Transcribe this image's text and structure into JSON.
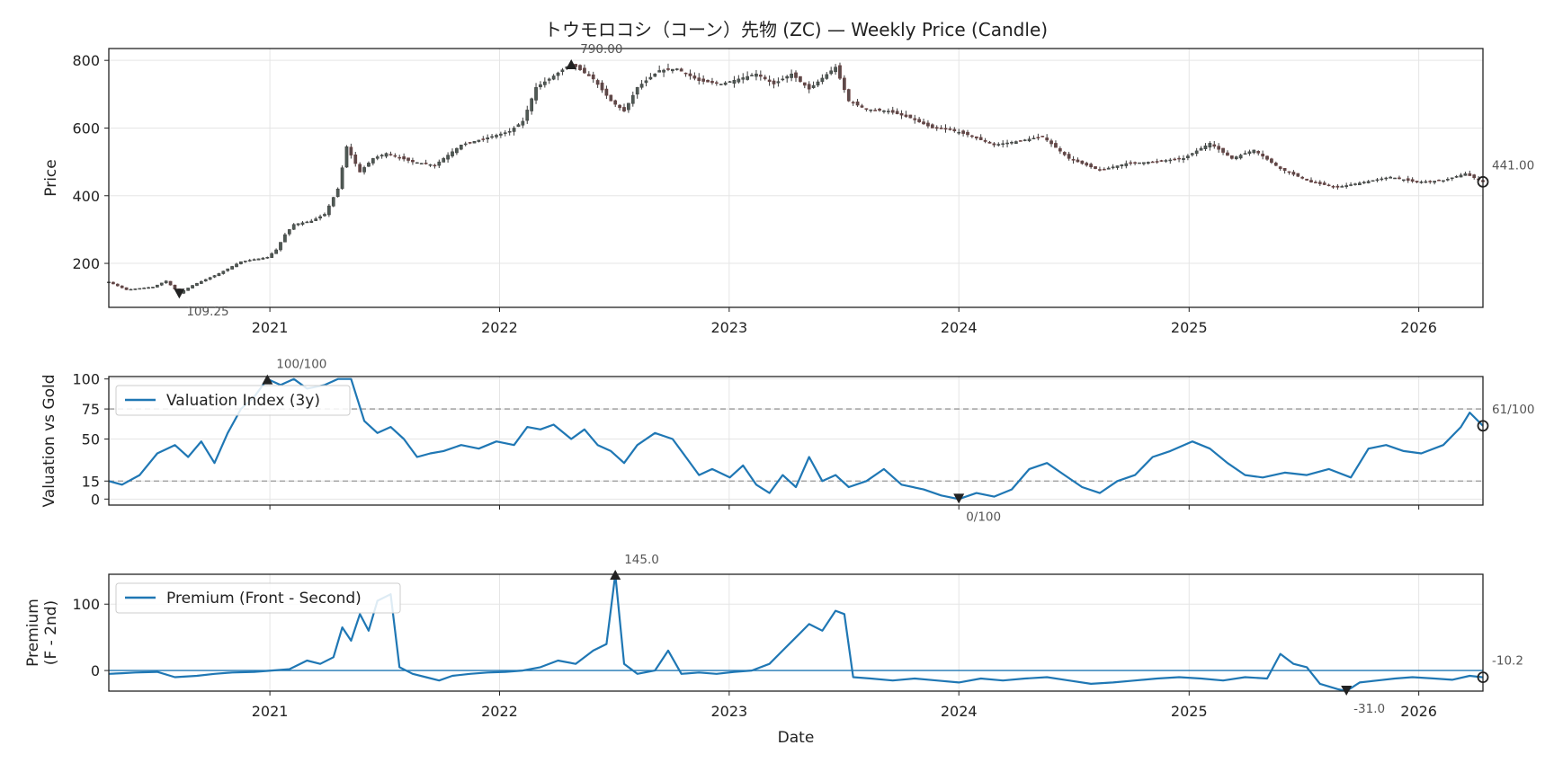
{
  "chart_data": [
    {
      "type": "candlestick",
      "title": "トウモロコシ（コーン）先物 (ZC) — Weekly Price (Candle)",
      "ylabel": "Price",
      "ylim": [
        70,
        835
      ],
      "yticks": [
        200,
        400,
        600,
        800
      ],
      "xlim": [
        "2020-04-20",
        "2026-04-13"
      ],
      "xticks": [
        "2021",
        "2022",
        "2023",
        "2024",
        "2025",
        "2026"
      ],
      "grid": true,
      "price_path": [
        [
          "2020-04-20",
          145
        ],
        [
          "2020-05-18",
          122
        ],
        [
          "2020-06-29",
          130
        ],
        [
          "2020-07-20",
          148
        ],
        [
          "2020-08-10",
          112
        ],
        [
          "2020-08-31",
          135
        ],
        [
          "2020-10-12",
          170
        ],
        [
          "2020-11-16",
          205
        ],
        [
          "2020-12-28",
          218
        ],
        [
          "2021-01-11",
          240
        ],
        [
          "2021-01-25",
          285
        ],
        [
          "2021-02-08",
          315
        ],
        [
          "2021-03-08",
          325
        ],
        [
          "2021-03-29",
          345
        ],
        [
          "2021-04-19",
          420
        ],
        [
          "2021-05-03",
          545
        ],
        [
          "2021-05-24",
          470
        ],
        [
          "2021-06-14",
          510
        ],
        [
          "2021-07-05",
          525
        ],
        [
          "2021-08-16",
          500
        ],
        [
          "2021-09-20",
          490
        ],
        [
          "2021-11-01",
          550
        ],
        [
          "2021-12-20",
          575
        ],
        [
          "2022-01-17",
          590
        ],
        [
          "2022-02-07",
          620
        ],
        [
          "2022-02-28",
          720
        ],
        [
          "2022-03-21",
          745
        ],
        [
          "2022-04-25",
          790
        ],
        [
          "2022-05-30",
          745
        ],
        [
          "2022-06-27",
          680
        ],
        [
          "2022-07-18",
          650
        ],
        [
          "2022-08-08",
          720
        ],
        [
          "2022-09-12",
          770
        ],
        [
          "2022-10-10",
          775
        ],
        [
          "2022-11-14",
          740
        ],
        [
          "2022-12-19",
          730
        ],
        [
          "2023-01-16",
          745
        ],
        [
          "2023-02-13",
          760
        ],
        [
          "2023-03-13",
          730
        ],
        [
          "2023-04-10",
          760
        ],
        [
          "2023-05-08",
          715
        ],
        [
          "2023-06-19",
          780
        ],
        [
          "2023-07-10",
          680
        ],
        [
          "2023-08-07",
          655
        ],
        [
          "2023-09-11",
          650
        ],
        [
          "2023-10-16",
          630
        ],
        [
          "2023-11-20",
          600
        ],
        [
          "2023-12-18",
          595
        ],
        [
          "2024-01-15",
          580
        ],
        [
          "2024-02-26",
          550
        ],
        [
          "2024-04-01",
          560
        ],
        [
          "2024-05-13",
          575
        ],
        [
          "2024-06-24",
          510
        ],
        [
          "2024-08-12",
          475
        ],
        [
          "2024-09-23",
          495
        ],
        [
          "2024-11-04",
          500
        ],
        [
          "2024-12-23",
          510
        ],
        [
          "2025-02-03",
          555
        ],
        [
          "2025-03-10",
          510
        ],
        [
          "2025-04-14",
          535
        ],
        [
          "2025-05-26",
          480
        ],
        [
          "2025-07-14",
          440
        ],
        [
          "2025-08-25",
          425
        ],
        [
          "2025-10-06",
          440
        ],
        [
          "2025-11-17",
          455
        ],
        [
          "2025-12-29",
          440
        ],
        [
          "2026-02-09",
          445
        ],
        [
          "2026-03-16",
          465
        ],
        [
          "2026-04-13",
          441
        ]
      ],
      "annotations": [
        {
          "label": "790.00",
          "x": "2022-04-25",
          "y": 790,
          "marker": "max"
        },
        {
          "label": "109.25",
          "x": "2020-08-10",
          "y": 109.25,
          "marker": "min"
        },
        {
          "label": "441.00",
          "x": "2026-04-13",
          "y": 441,
          "marker": "last"
        }
      ]
    },
    {
      "type": "line",
      "ylabel": "Valuation vs Gold",
      "ylim": [
        -5,
        102
      ],
      "yticks": [
        0,
        15,
        50,
        75,
        100
      ],
      "hlines": [
        15,
        75
      ],
      "xlim": [
        "2020-04-20",
        "2026-04-13"
      ],
      "grid": true,
      "legend_position": "upper-left",
      "series": [
        {
          "name": "Valuation Index (3y)",
          "color": "#1f77b4",
          "points": [
            [
              "2020-04-20",
              15
            ],
            [
              "2020-05-11",
              12
            ],
            [
              "2020-06-08",
              20
            ],
            [
              "2020-07-06",
              38
            ],
            [
              "2020-08-03",
              45
            ],
            [
              "2020-08-24",
              35
            ],
            [
              "2020-09-14",
              48
            ],
            [
              "2020-10-05",
              30
            ],
            [
              "2020-10-26",
              55
            ],
            [
              "2020-11-16",
              75
            ],
            [
              "2020-12-07",
              85
            ],
            [
              "2020-12-28",
              100
            ],
            [
              "2021-01-18",
              95
            ],
            [
              "2021-02-08",
              100
            ],
            [
              "2021-03-01",
              92
            ],
            [
              "2021-03-29",
              95
            ],
            [
              "2021-04-19",
              100
            ],
            [
              "2021-05-10",
              100
            ],
            [
              "2021-05-31",
              65
            ],
            [
              "2021-06-21",
              55
            ],
            [
              "2021-07-12",
              60
            ],
            [
              "2021-08-02",
              50
            ],
            [
              "2021-08-23",
              35
            ],
            [
              "2021-09-13",
              38
            ],
            [
              "2021-10-04",
              40
            ],
            [
              "2021-11-01",
              45
            ],
            [
              "2021-11-29",
              42
            ],
            [
              "2021-12-27",
              48
            ],
            [
              "2022-01-24",
              45
            ],
            [
              "2022-02-14",
              60
            ],
            [
              "2022-03-07",
              58
            ],
            [
              "2022-03-28",
              62
            ],
            [
              "2022-04-25",
              50
            ],
            [
              "2022-05-16",
              58
            ],
            [
              "2022-06-06",
              45
            ],
            [
              "2022-06-27",
              40
            ],
            [
              "2022-07-18",
              30
            ],
            [
              "2022-08-08",
              45
            ],
            [
              "2022-09-05",
              55
            ],
            [
              "2022-10-03",
              50
            ],
            [
              "2022-10-24",
              35
            ],
            [
              "2022-11-14",
              20
            ],
            [
              "2022-12-05",
              25
            ],
            [
              "2023-01-02",
              18
            ],
            [
              "2023-01-23",
              28
            ],
            [
              "2023-02-13",
              12
            ],
            [
              "2023-03-06",
              5
            ],
            [
              "2023-03-27",
              20
            ],
            [
              "2023-04-17",
              10
            ],
            [
              "2023-05-08",
              35
            ],
            [
              "2023-05-29",
              15
            ],
            [
              "2023-06-19",
              20
            ],
            [
              "2023-07-10",
              10
            ],
            [
              "2023-08-07",
              15
            ],
            [
              "2023-09-04",
              25
            ],
            [
              "2023-10-02",
              12
            ],
            [
              "2023-11-06",
              8
            ],
            [
              "2023-12-04",
              3
            ],
            [
              "2024-01-01",
              0
            ],
            [
              "2024-01-29",
              5
            ],
            [
              "2024-02-26",
              2
            ],
            [
              "2024-03-25",
              8
            ],
            [
              "2024-04-22",
              25
            ],
            [
              "2024-05-20",
              30
            ],
            [
              "2024-06-17",
              20
            ],
            [
              "2024-07-15",
              10
            ],
            [
              "2024-08-12",
              5
            ],
            [
              "2024-09-09",
              15
            ],
            [
              "2024-10-07",
              20
            ],
            [
              "2024-11-04",
              35
            ],
            [
              "2024-12-02",
              40
            ],
            [
              "2025-01-06",
              48
            ],
            [
              "2025-02-03",
              42
            ],
            [
              "2025-03-03",
              30
            ],
            [
              "2025-03-31",
              20
            ],
            [
              "2025-04-28",
              18
            ],
            [
              "2025-06-02",
              22
            ],
            [
              "2025-07-07",
              20
            ],
            [
              "2025-08-11",
              25
            ],
            [
              "2025-09-15",
              18
            ],
            [
              "2025-10-13",
              42
            ],
            [
              "2025-11-10",
              45
            ],
            [
              "2025-12-08",
              40
            ],
            [
              "2026-01-05",
              38
            ],
            [
              "2026-02-09",
              45
            ],
            [
              "2026-03-09",
              60
            ],
            [
              "2026-03-23",
              72
            ],
            [
              "2026-04-13",
              61
            ]
          ]
        }
      ],
      "annotations": [
        {
          "label": "100/100",
          "x": "2020-12-28",
          "y": 100,
          "marker": "max"
        },
        {
          "label": "0/100",
          "x": "2024-01-01",
          "y": 0,
          "marker": "min"
        },
        {
          "label": "61/100",
          "x": "2026-04-13",
          "y": 61,
          "marker": "last"
        }
      ]
    },
    {
      "type": "line",
      "ylabel": "Premium\n(F - 2nd)",
      "xlabel": "Date",
      "ylim": [
        -31,
        145
      ],
      "yticks": [
        0,
        100
      ],
      "hlines": [
        0
      ],
      "xlim": [
        "2020-04-20",
        "2026-04-13"
      ],
      "xticks": [
        "2021",
        "2022",
        "2023",
        "2024",
        "2025",
        "2026"
      ],
      "grid": true,
      "legend_position": "upper-left",
      "series": [
        {
          "name": "Premium (Front - Second)",
          "color": "#1f77b4",
          "points": [
            [
              "2020-04-20",
              -5
            ],
            [
              "2020-05-11",
              -4
            ],
            [
              "2020-06-01",
              -3
            ],
            [
              "2020-07-06",
              -2
            ],
            [
              "2020-08-03",
              -10
            ],
            [
              "2020-09-07",
              -8
            ],
            [
              "2020-10-05",
              -5
            ],
            [
              "2020-11-02",
              -3
            ],
            [
              "2020-12-07",
              -2
            ],
            [
              "2021-01-04",
              0
            ],
            [
              "2021-02-01",
              2
            ],
            [
              "2021-03-01",
              15
            ],
            [
              "2021-03-22",
              10
            ],
            [
              "2021-04-12",
              20
            ],
            [
              "2021-04-26",
              65
            ],
            [
              "2021-05-10",
              45
            ],
            [
              "2021-05-24",
              85
            ],
            [
              "2021-06-07",
              60
            ],
            [
              "2021-06-21",
              105
            ],
            [
              "2021-07-12",
              115
            ],
            [
              "2021-07-26",
              5
            ],
            [
              "2021-08-16",
              -5
            ],
            [
              "2021-09-06",
              -10
            ],
            [
              "2021-09-27",
              -15
            ],
            [
              "2021-10-18",
              -8
            ],
            [
              "2021-11-15",
              -5
            ],
            [
              "2021-12-13",
              -3
            ],
            [
              "2022-01-10",
              -2
            ],
            [
              "2022-02-07",
              0
            ],
            [
              "2022-03-07",
              5
            ],
            [
              "2022-04-04",
              15
            ],
            [
              "2022-05-02",
              10
            ],
            [
              "2022-05-30",
              30
            ],
            [
              "2022-06-20",
              40
            ],
            [
              "2022-07-04",
              145
            ],
            [
              "2022-07-18",
              10
            ],
            [
              "2022-08-08",
              -5
            ],
            [
              "2022-09-05",
              0
            ],
            [
              "2022-09-26",
              30
            ],
            [
              "2022-10-17",
              -5
            ],
            [
              "2022-11-14",
              -3
            ],
            [
              "2022-12-12",
              -5
            ],
            [
              "2023-01-09",
              -2
            ],
            [
              "2023-02-06",
              0
            ],
            [
              "2023-03-06",
              10
            ],
            [
              "2023-03-27",
              30
            ],
            [
              "2023-04-17",
              50
            ],
            [
              "2023-05-08",
              70
            ],
            [
              "2023-05-29",
              60
            ],
            [
              "2023-06-19",
              90
            ],
            [
              "2023-07-03",
              85
            ],
            [
              "2023-07-17",
              -10
            ],
            [
              "2023-08-14",
              -12
            ],
            [
              "2023-09-18",
              -15
            ],
            [
              "2023-10-23",
              -12
            ],
            [
              "2023-11-27",
              -15
            ],
            [
              "2024-01-01",
              -18
            ],
            [
              "2024-02-05",
              -12
            ],
            [
              "2024-03-11",
              -15
            ],
            [
              "2024-04-15",
              -12
            ],
            [
              "2024-05-20",
              -10
            ],
            [
              "2024-06-24",
              -15
            ],
            [
              "2024-07-29",
              -20
            ],
            [
              "2024-09-02",
              -18
            ],
            [
              "2024-10-07",
              -15
            ],
            [
              "2024-11-11",
              -12
            ],
            [
              "2024-12-16",
              -10
            ],
            [
              "2025-01-20",
              -12
            ],
            [
              "2025-02-24",
              -15
            ],
            [
              "2025-03-31",
              -10
            ],
            [
              "2025-05-05",
              -12
            ],
            [
              "2025-05-26",
              25
            ],
            [
              "2025-06-16",
              10
            ],
            [
              "2025-07-07",
              5
            ],
            [
              "2025-07-28",
              -20
            ],
            [
              "2025-08-25",
              -28
            ],
            [
              "2025-09-08",
              -31
            ],
            [
              "2025-09-29",
              -18
            ],
            [
              "2025-10-27",
              -15
            ],
            [
              "2025-11-24",
              -12
            ],
            [
              "2025-12-22",
              -10
            ],
            [
              "2026-01-26",
              -12
            ],
            [
              "2026-02-23",
              -14
            ],
            [
              "2026-03-23",
              -8
            ],
            [
              "2026-04-13",
              -10.2
            ]
          ]
        }
      ],
      "annotations": [
        {
          "label": "145.0",
          "x": "2022-07-04",
          "y": 145,
          "marker": "max"
        },
        {
          "label": "-31.0",
          "x": "2025-09-08",
          "y": -31,
          "marker": "min"
        },
        {
          "label": "-10.2",
          "x": "2026-04-13",
          "y": -10.2,
          "marker": "last"
        }
      ]
    }
  ]
}
